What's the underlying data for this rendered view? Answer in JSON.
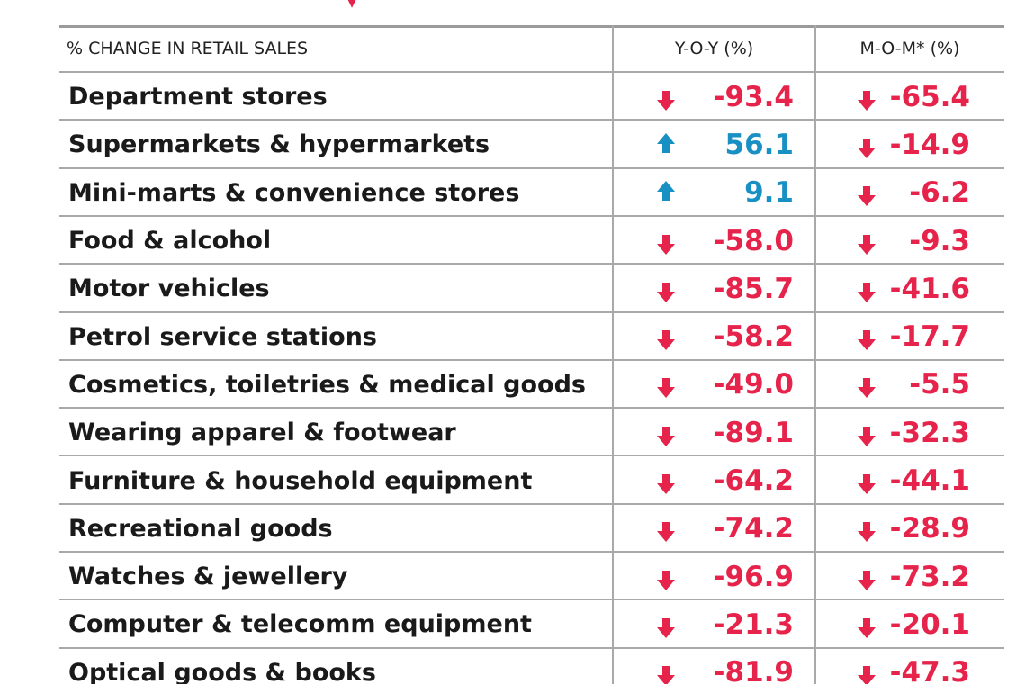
{
  "colors": {
    "down": "#e6244b",
    "up": "#1990c4",
    "text": "#1a1a1a",
    "grid": "#a9a9a9"
  },
  "chart_data": {
    "type": "table",
    "columns": [
      "% CHANGE IN RETAIL SALES",
      "Y-O-Y (%)",
      "M-O-M* (%)"
    ],
    "rows": [
      {
        "category": "Department stores",
        "yoy": "-93.4",
        "mom": "-65.4",
        "yoy_dir": "down",
        "mom_dir": "down"
      },
      {
        "category": "Supermarkets & hypermarkets",
        "yoy": "56.1",
        "mom": "-14.9",
        "yoy_dir": "up",
        "mom_dir": "down"
      },
      {
        "category": "Mini-marts & convenience stores",
        "yoy": "9.1",
        "mom": "-6.2",
        "yoy_dir": "up",
        "mom_dir": "down"
      },
      {
        "category": "Food & alcohol",
        "yoy": "-58.0",
        "mom": "-9.3",
        "yoy_dir": "down",
        "mom_dir": "down"
      },
      {
        "category": "Motor vehicles",
        "yoy": "-85.7",
        "mom": "-41.6",
        "yoy_dir": "down",
        "mom_dir": "down"
      },
      {
        "category": "Petrol service stations",
        "yoy": "-58.2",
        "mom": "-17.7",
        "yoy_dir": "down",
        "mom_dir": "down"
      },
      {
        "category": "Cosmetics, toiletries & medical goods",
        "yoy": "-49.0",
        "mom": "-5.5",
        "yoy_dir": "down",
        "mom_dir": "down"
      },
      {
        "category": "Wearing apparel & footwear",
        "yoy": "-89.1",
        "mom": "-32.3",
        "yoy_dir": "down",
        "mom_dir": "down"
      },
      {
        "category": "Furniture & household equipment",
        "yoy": "-64.2",
        "mom": "-44.1",
        "yoy_dir": "down",
        "mom_dir": "down"
      },
      {
        "category": "Recreational goods",
        "yoy": "-74.2",
        "mom": "-28.9",
        "yoy_dir": "down",
        "mom_dir": "down"
      },
      {
        "category": "Watches & jewellery",
        "yoy": "-96.9",
        "mom": "-73.2",
        "yoy_dir": "down",
        "mom_dir": "down"
      },
      {
        "category": "Computer & telecomm equipment",
        "yoy": "-21.3",
        "mom": "-20.1",
        "yoy_dir": "down",
        "mom_dir": "down"
      },
      {
        "category": "Optical goods & books",
        "yoy": "-81.9",
        "mom": "-47.3",
        "yoy_dir": "down",
        "mom_dir": "down"
      }
    ]
  }
}
